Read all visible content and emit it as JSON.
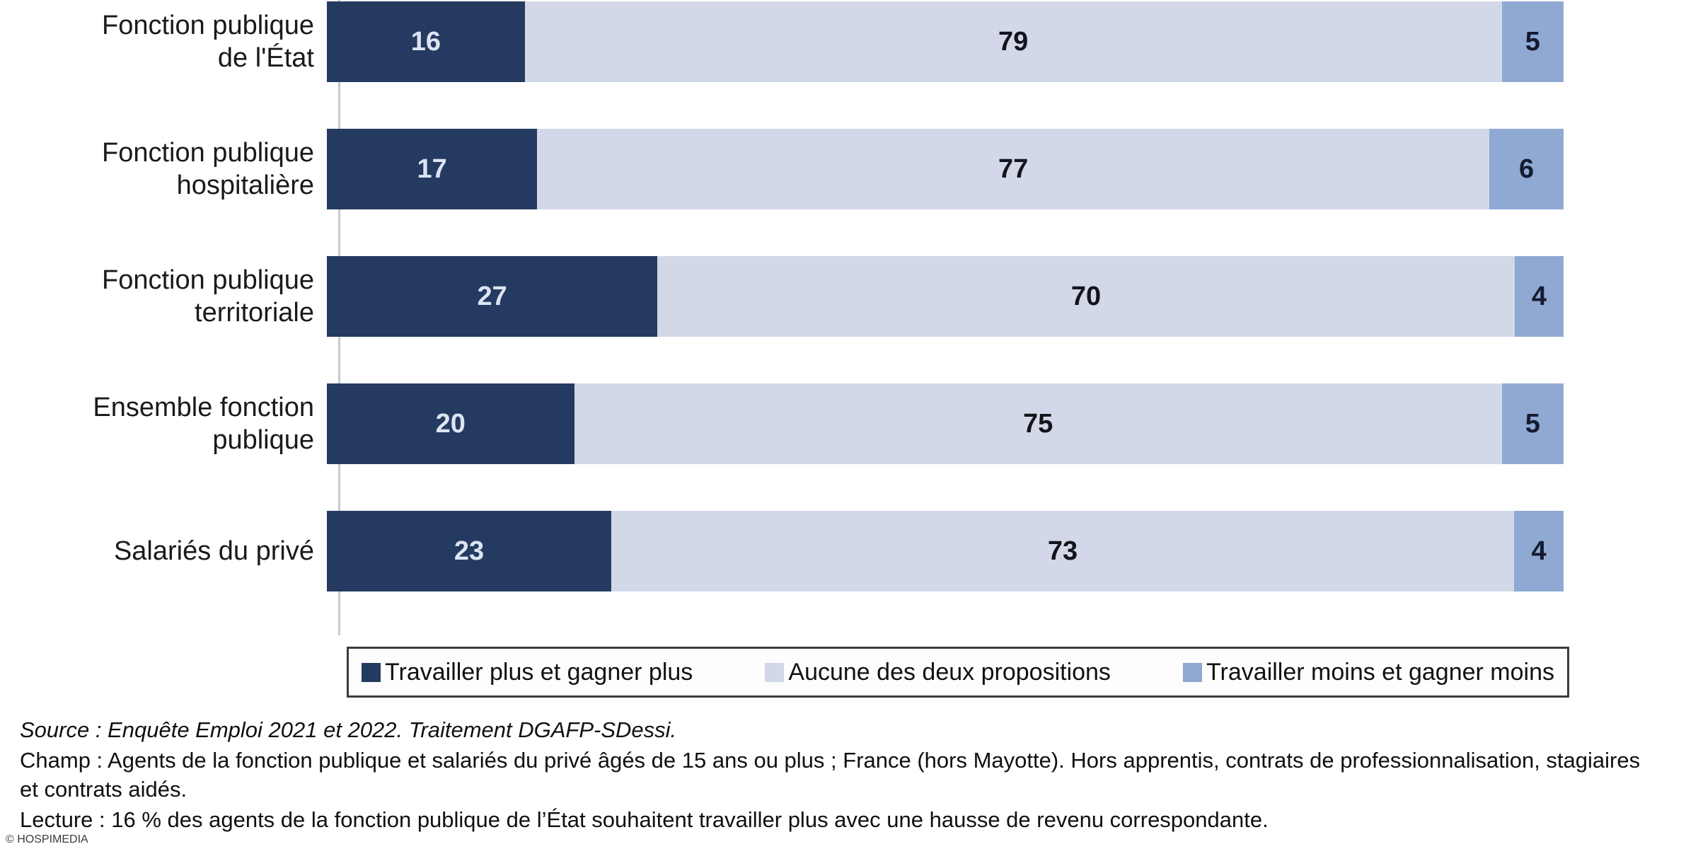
{
  "chart_data": {
    "type": "bar",
    "orientation": "horizontal",
    "stacked": true,
    "unit": "%",
    "xlim": [
      0,
      100
    ],
    "grid": false,
    "legend_position": "bottom-boxed",
    "categories": [
      "Fonction publique\nde l'État",
      "Fonction publique\nhospitalière",
      "Fonction publique\nterritoriale",
      "Ensemble fonction\npublique",
      "Salariés du privé"
    ],
    "series": [
      {
        "name": "Travailler plus et gagner plus",
        "color": "#243A60",
        "value_label_color": "#DCE4F2",
        "values": [
          16,
          17,
          27,
          20,
          23
        ]
      },
      {
        "name": "Aucune des deux propositions",
        "color": "#D2D8E8",
        "value_label_color": "#14141C",
        "values": [
          79,
          77,
          70,
          75,
          73
        ]
      },
      {
        "name": "Travailler moins et gagner moins",
        "color": "#8FA9D3",
        "value_label_color": "#141B2E",
        "values": [
          5,
          6,
          4,
          5,
          4
        ]
      }
    ]
  },
  "notes": {
    "source": "Source : Enquête Emploi 2021 et 2022. Traitement DGAFP-SDessi.",
    "champ": "Champ : Agents de la fonction publique et salariés du privé âgés de 15 ans ou plus ; France (hors Mayotte). Hors apprentis, contrats de professionnalisation, stagiaires et contrats aidés.",
    "lecture": "Lecture : 16 % des agents de la fonction publique de l’État souhaitent travailler plus avec une hausse de revenu correspondante."
  },
  "footer": {
    "copyright": "© HOSPIMEDIA"
  }
}
